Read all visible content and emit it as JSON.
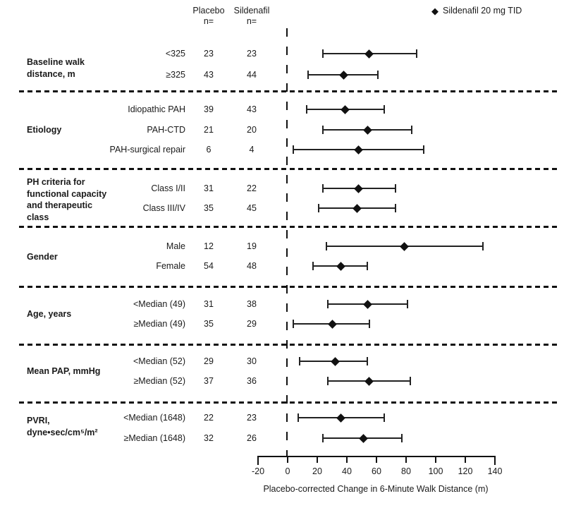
{
  "header": {
    "col1_title": "Placebo",
    "col1_sub": "n=",
    "col2_title": "Sildenafil",
    "col2_sub": "n="
  },
  "legend": {
    "marker": "◆",
    "label": "Sildenafil 20 mg TID"
  },
  "chart_data": {
    "type": "forest",
    "x_axis": {
      "label": "Placebo-corrected Change in 6-Minute Walk Distance (m)",
      "ticks": [
        -20,
        0,
        20,
        40,
        60,
        80,
        100,
        120,
        140
      ],
      "range": [
        -20,
        140
      ],
      "zero_reference_line": 0
    },
    "legend_position": "top-right",
    "sections": [
      {
        "label": "Baseline walk\ndistance, m",
        "rows": [
          {
            "subgroup": "<325",
            "placebo_n": 23,
            "sildenafil_n": 23,
            "center": 55,
            "ci_low": 24,
            "ci_high": 87
          },
          {
            "subgroup": "≥325",
            "placebo_n": 43,
            "sildenafil_n": 44,
            "center": 38,
            "ci_low": 14,
            "ci_high": 61
          }
        ]
      },
      {
        "label": "Etiology",
        "rows": [
          {
            "subgroup": "Idiopathic PAH",
            "placebo_n": 39,
            "sildenafil_n": 43,
            "center": 39,
            "ci_low": 13,
            "ci_high": 65
          },
          {
            "subgroup": "PAH-CTD",
            "placebo_n": 21,
            "sildenafil_n": 20,
            "center": 54,
            "ci_low": 24,
            "ci_high": 84
          },
          {
            "subgroup": "PAH-surgical repair",
            "placebo_n": 6,
            "sildenafil_n": 4,
            "center": 48,
            "ci_low": 4,
            "ci_high": 92
          }
        ]
      },
      {
        "label": "PH criteria for\nfunctional capacity\nand therapeutic\nclass",
        "rows": [
          {
            "subgroup": "Class I/II",
            "placebo_n": 31,
            "sildenafil_n": 22,
            "center": 48,
            "ci_low": 24,
            "ci_high": 73
          },
          {
            "subgroup": "Class III/IV",
            "placebo_n": 35,
            "sildenafil_n": 45,
            "center": 47,
            "ci_low": 21,
            "ci_high": 73
          }
        ]
      },
      {
        "label": "Gender",
        "rows": [
          {
            "subgroup": "Male",
            "placebo_n": 12,
            "sildenafil_n": 19,
            "center": 79,
            "ci_low": 26,
            "ci_high": 132
          },
          {
            "subgroup": "Female",
            "placebo_n": 54,
            "sildenafil_n": 48,
            "center": 36,
            "ci_low": 17,
            "ci_high": 54
          }
        ]
      },
      {
        "label": "Age, years",
        "rows": [
          {
            "subgroup": "<Median (49)",
            "placebo_n": 31,
            "sildenafil_n": 38,
            "center": 54,
            "ci_low": 27,
            "ci_high": 81
          },
          {
            "subgroup": "≥Median (49)",
            "placebo_n": 35,
            "sildenafil_n": 29,
            "center": 30,
            "ci_low": 4,
            "ci_high": 55
          }
        ]
      },
      {
        "label": "Mean PAP, mmHg",
        "rows": [
          {
            "subgroup": "<Median (52)",
            "placebo_n": 29,
            "sildenafil_n": 30,
            "center": 32,
            "ci_low": 8,
            "ci_high": 54
          },
          {
            "subgroup": "≥Median (52)",
            "placebo_n": 37,
            "sildenafil_n": 36,
            "center": 55,
            "ci_low": 27,
            "ci_high": 83
          }
        ]
      },
      {
        "label": "PVRI,\ndyne•sec/cm⁵/m²",
        "rows": [
          {
            "subgroup": "<Median (1648)",
            "placebo_n": 22,
            "sildenafil_n": 23,
            "center": 36,
            "ci_low": 7,
            "ci_high": 65
          },
          {
            "subgroup": "≥Median (1648)",
            "placebo_n": 32,
            "sildenafil_n": 26,
            "center": 51,
            "ci_low": 24,
            "ci_high": 77
          }
        ]
      }
    ]
  }
}
